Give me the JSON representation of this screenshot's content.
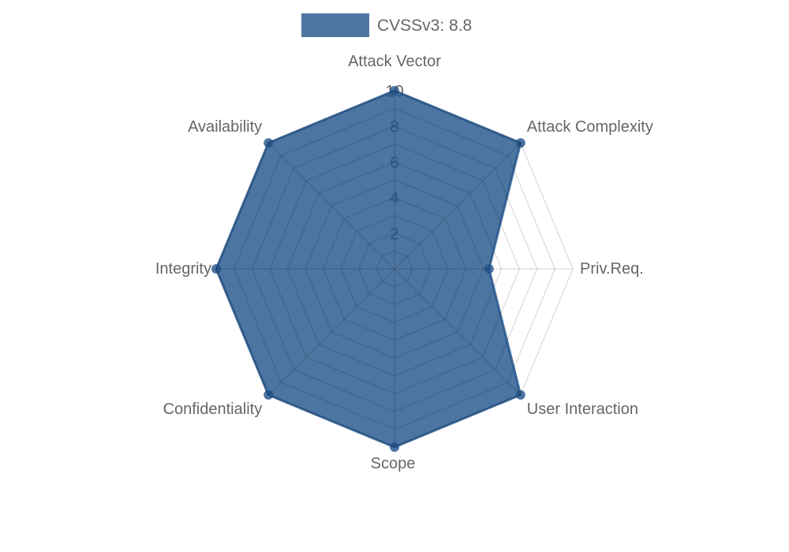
{
  "legend": {
    "label": "CVSSv3: 8.8"
  },
  "chart_data": {
    "type": "radar",
    "title": "CVSSv3: 8.8",
    "categories": [
      "Attack Vector",
      "Attack Complexity",
      "Priv.Req.",
      "User Interaction",
      "Scope",
      "Confidentiality",
      "Integrity",
      "Availability"
    ],
    "series": [
      {
        "name": "CVSSv3: 8.8",
        "values": [
          10,
          10,
          5.3,
          10,
          10,
          10,
          10,
          10
        ]
      }
    ],
    "r_axis": {
      "min": 0,
      "max": 10,
      "tick_labels": [
        "2",
        "4",
        "6",
        "8",
        "10"
      ],
      "ring_step": 1
    },
    "grid": true,
    "legend_position": "top",
    "fill_color": "rgba(33,82,137,0.8)",
    "border_color": "rgba(33,82,137,0.8)",
    "point_color": "rgba(33,82,137,0.8)",
    "grid_color": "rgba(0,0,0,0.15)",
    "tick_backdrop_color": "#ffffff",
    "tick_text_color": "#666666",
    "label_color": "#666666"
  }
}
